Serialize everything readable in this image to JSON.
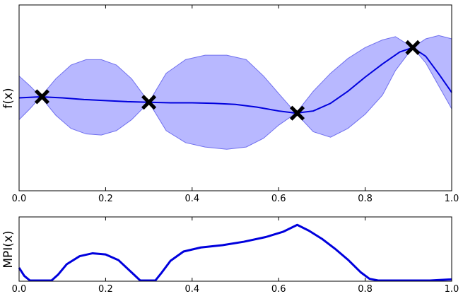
{
  "chart_data": [
    {
      "type": "line",
      "xlabel": "",
      "ylabel": "f(x)",
      "xlim": [
        0.0,
        1.0
      ],
      "ylim": [
        -1.7,
        1.7
      ],
      "x_ticks": [
        "0.0",
        "0.2",
        "0.4",
        "0.6",
        "0.8",
        "1.0"
      ],
      "y_ticks": [],
      "grid": false,
      "mean": {
        "x": [
          0.0,
          0.05,
          0.1,
          0.15,
          0.2,
          0.25,
          0.3,
          0.35,
          0.4,
          0.45,
          0.5,
          0.55,
          0.6,
          0.64,
          0.68,
          0.72,
          0.76,
          0.8,
          0.84,
          0.88,
          0.91,
          0.94,
          0.97,
          1.0
        ],
        "y": [
          0.0,
          0.02,
          0.0,
          -0.03,
          -0.05,
          -0.07,
          -0.08,
          -0.09,
          -0.09,
          -0.1,
          -0.12,
          -0.17,
          -0.24,
          -0.28,
          -0.24,
          -0.1,
          0.12,
          0.38,
          0.62,
          0.84,
          0.92,
          0.76,
          0.44,
          0.1
        ]
      },
      "band_upper": {
        "x": [
          0.0,
          0.025,
          0.05,
          0.085,
          0.12,
          0.155,
          0.19,
          0.225,
          0.26,
          0.3,
          0.34,
          0.385,
          0.43,
          0.48,
          0.525,
          0.565,
          0.6,
          0.64,
          0.68,
          0.72,
          0.76,
          0.8,
          0.84,
          0.87,
          0.91,
          0.94,
          0.97,
          1.0
        ],
        "y": [
          0.4,
          0.22,
          0.02,
          0.35,
          0.6,
          0.7,
          0.7,
          0.6,
          0.35,
          -0.08,
          0.45,
          0.7,
          0.78,
          0.78,
          0.7,
          0.4,
          0.08,
          -0.28,
          0.12,
          0.45,
          0.72,
          0.92,
          1.06,
          1.12,
          0.92,
          1.08,
          1.14,
          1.08
        ]
      },
      "band_lower": {
        "x": [
          0.0,
          0.025,
          0.05,
          0.085,
          0.12,
          0.155,
          0.19,
          0.225,
          0.26,
          0.3,
          0.34,
          0.385,
          0.43,
          0.48,
          0.525,
          0.565,
          0.6,
          0.64,
          0.68,
          0.72,
          0.76,
          0.8,
          0.84,
          0.87,
          0.91,
          0.94,
          0.97,
          1.0
        ],
        "y": [
          -0.4,
          -0.2,
          0.02,
          -0.32,
          -0.56,
          -0.66,
          -0.68,
          -0.6,
          -0.4,
          -0.08,
          -0.6,
          -0.82,
          -0.9,
          -0.94,
          -0.9,
          -0.74,
          -0.5,
          -0.28,
          -0.62,
          -0.72,
          -0.56,
          -0.3,
          0.05,
          0.5,
          0.92,
          0.64,
          0.22,
          -0.2
        ]
      },
      "observations": {
        "x": [
          0.053,
          0.3,
          0.643,
          0.91
        ],
        "y": [
          0.02,
          -0.08,
          -0.28,
          0.92
        ]
      },
      "colors": {
        "mean": "#0000dd",
        "band_fill": "#b8b8ff",
        "band_edge": "#7070ee",
        "marker": "#000000"
      }
    },
    {
      "type": "line",
      "xlabel": "",
      "ylabel": "MPI(x)",
      "xlim": [
        0.0,
        1.0
      ],
      "ylim": [
        0.0,
        1.0
      ],
      "x_ticks": [
        "0.0",
        "0.2",
        "0.4",
        "0.6",
        "0.8",
        "1.0"
      ],
      "y_ticks": [],
      "grid": false,
      "series": [
        {
          "x": [
            0.0,
            0.012,
            0.025,
            0.05,
            0.075,
            0.09,
            0.11,
            0.14,
            0.17,
            0.2,
            0.23,
            0.26,
            0.28,
            0.3,
            0.315,
            0.33,
            0.35,
            0.38,
            0.42,
            0.47,
            0.52,
            0.57,
            0.61,
            0.643,
            0.67,
            0.7,
            0.73,
            0.76,
            0.79,
            0.81,
            0.83,
            0.86,
            0.9,
            0.95,
            1.0
          ],
          "y": [
            0.22,
            0.08,
            0.0,
            0.0,
            0.0,
            0.1,
            0.28,
            0.42,
            0.47,
            0.45,
            0.35,
            0.14,
            0.0,
            0.0,
            0.0,
            0.14,
            0.34,
            0.5,
            0.57,
            0.61,
            0.67,
            0.75,
            0.84,
            0.96,
            0.86,
            0.72,
            0.55,
            0.36,
            0.14,
            0.03,
            0.0,
            0.0,
            0.0,
            0.0,
            0.02
          ]
        }
      ],
      "colors": {
        "line": "#0000dd"
      }
    }
  ]
}
